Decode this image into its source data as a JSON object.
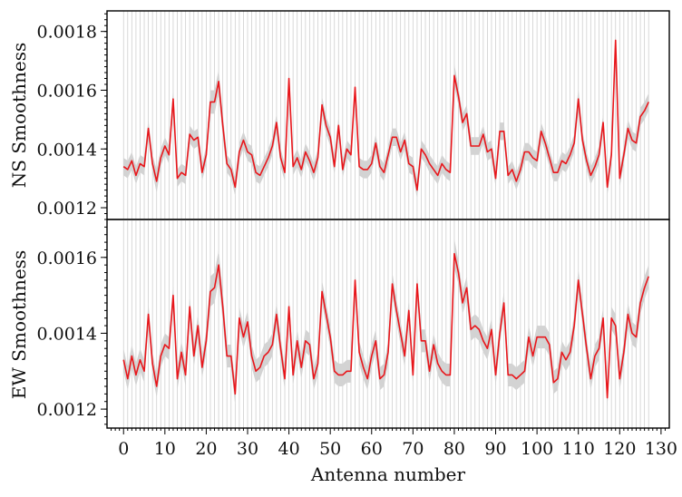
{
  "chart_data": [
    {
      "type": "line",
      "title": "",
      "xlabel": "",
      "ylabel": "NS Smoothness",
      "xlim": [
        -4,
        132
      ],
      "ylim": [
        0.00116,
        0.00187
      ],
      "yticks": [
        0.0012,
        0.0014,
        0.0016,
        0.0018
      ],
      "ytick_labels": [
        "0.0012",
        "0.0014",
        "0.0016",
        "0.0018"
      ],
      "grid": "vertical line at every antenna",
      "line_color": "#e8161b",
      "band_color": "#d3d3d3",
      "x": [
        0,
        1,
        2,
        3,
        4,
        5,
        6,
        7,
        8,
        9,
        10,
        11,
        12,
        13,
        14,
        15,
        16,
        17,
        18,
        19,
        20,
        21,
        22,
        23,
        24,
        25,
        26,
        27,
        28,
        29,
        30,
        31,
        32,
        33,
        34,
        35,
        36,
        37,
        38,
        39,
        40,
        41,
        42,
        43,
        44,
        45,
        46,
        47,
        48,
        49,
        50,
        51,
        52,
        53,
        54,
        55,
        56,
        57,
        58,
        59,
        60,
        61,
        62,
        63,
        64,
        65,
        66,
        67,
        68,
        69,
        70,
        71,
        72,
        73,
        74,
        75,
        76,
        77,
        78,
        79,
        80,
        81,
        82,
        83,
        84,
        85,
        86,
        87,
        88,
        89,
        90,
        91,
        92,
        93,
        94,
        95,
        96,
        97,
        98,
        99,
        100,
        101,
        102,
        103,
        104,
        105,
        106,
        107,
        108,
        109,
        110,
        111,
        112,
        113,
        114,
        115,
        116,
        117,
        118,
        119,
        120,
        121,
        122,
        123,
        124,
        125,
        126,
        127
      ],
      "values": [
        0.00134,
        0.00133,
        0.00136,
        0.00131,
        0.00135,
        0.00134,
        0.00147,
        0.00135,
        0.00129,
        0.00137,
        0.00141,
        0.00138,
        0.00157,
        0.0013,
        0.00132,
        0.00131,
        0.00145,
        0.00143,
        0.00144,
        0.00132,
        0.00138,
        0.00156,
        0.00156,
        0.00163,
        0.00148,
        0.00135,
        0.00133,
        0.00127,
        0.00139,
        0.00143,
        0.00139,
        0.00138,
        0.00132,
        0.00131,
        0.00134,
        0.00137,
        0.00141,
        0.00149,
        0.00137,
        0.00132,
        0.00164,
        0.00134,
        0.00137,
        0.00133,
        0.00139,
        0.00136,
        0.00132,
        0.00137,
        0.00155,
        0.00148,
        0.00144,
        0.00134,
        0.00148,
        0.00133,
        0.0014,
        0.00138,
        0.00161,
        0.00134,
        0.00133,
        0.00133,
        0.00135,
        0.00142,
        0.00134,
        0.00132,
        0.00138,
        0.00144,
        0.00144,
        0.00139,
        0.00143,
        0.00135,
        0.00134,
        0.00126,
        0.0014,
        0.00138,
        0.00135,
        0.00133,
        0.00131,
        0.00135,
        0.00133,
        0.00132,
        0.00165,
        0.00158,
        0.00149,
        0.00152,
        0.00141,
        0.00141,
        0.00141,
        0.00145,
        0.00139,
        0.0014,
        0.0013,
        0.00146,
        0.00146,
        0.00131,
        0.00133,
        0.00129,
        0.00133,
        0.00139,
        0.00139,
        0.00137,
        0.00136,
        0.00146,
        0.00142,
        0.00137,
        0.00132,
        0.00132,
        0.00136,
        0.00135,
        0.00138,
        0.00142,
        0.00157,
        0.00143,
        0.00136,
        0.00131,
        0.00134,
        0.00138,
        0.00149,
        0.00127,
        0.00138,
        0.00177,
        0.0013,
        0.00138,
        0.00147,
        0.00143,
        0.00142,
        0.00151,
        0.00153,
        0.00156
      ],
      "band_halfwidth": [
        3e-05,
        3e-05,
        3e-05,
        3e-05,
        3e-05,
        3e-05,
        3e-05,
        3e-05,
        4e-05,
        3e-05,
        3e-05,
        3e-05,
        4e-05,
        3e-05,
        3e-05,
        3e-05,
        3e-05,
        3e-05,
        3e-05,
        3e-05,
        3e-05,
        4e-05,
        4e-05,
        4e-05,
        4e-05,
        3e-05,
        3e-05,
        3e-05,
        3e-05,
        3e-05,
        3e-05,
        3e-05,
        3e-05,
        3e-05,
        3e-05,
        3e-05,
        3e-05,
        3e-05,
        3e-05,
        3e-05,
        4e-05,
        3e-05,
        3e-05,
        3e-05,
        3e-05,
        3e-05,
        3e-05,
        3e-05,
        3e-05,
        3e-05,
        3e-05,
        3e-05,
        3e-05,
        3e-05,
        3e-05,
        3e-05,
        3e-05,
        3e-05,
        3e-05,
        3e-05,
        3e-05,
        3e-05,
        3e-05,
        3e-05,
        3e-05,
        3e-05,
        3e-05,
        3e-05,
        3e-05,
        3e-05,
        3e-05,
        3e-05,
        3e-05,
        3e-05,
        3e-05,
        3e-05,
        3e-05,
        3e-05,
        3e-05,
        3e-05,
        4e-05,
        3e-05,
        3e-05,
        3e-05,
        3e-05,
        3e-05,
        3e-05,
        3e-05,
        3e-05,
        3e-05,
        3e-05,
        3e-05,
        3e-05,
        3e-05,
        3e-05,
        3e-05,
        3e-05,
        3e-05,
        3e-05,
        3e-05,
        3e-05,
        3e-05,
        3e-05,
        3e-05,
        3e-05,
        3e-05,
        3e-05,
        3e-05,
        3e-05,
        3e-05,
        4e-05,
        3e-05,
        3e-05,
        3e-05,
        3e-05,
        3e-05,
        3e-05,
        3e-05,
        3e-05,
        4e-05,
        3e-05,
        3e-05,
        3e-05,
        3e-05,
        3e-05,
        3e-05,
        3e-05,
        3e-05
      ]
    },
    {
      "type": "line",
      "title": "",
      "xlabel": "Antenna number",
      "ylabel": "EW Smoothness",
      "xlim": [
        -4,
        132
      ],
      "ylim": [
        0.00115,
        0.0017
      ],
      "yticks": [
        0.0012,
        0.0014,
        0.0016
      ],
      "ytick_labels": [
        "0.0012",
        "0.0014",
        "0.0016"
      ],
      "xticks": [
        0,
        10,
        20,
        30,
        40,
        50,
        60,
        70,
        80,
        90,
        100,
        110,
        120,
        130
      ],
      "xtick_labels": [
        "0",
        "10",
        "20",
        "30",
        "40",
        "50",
        "60",
        "70",
        "80",
        "90",
        "100",
        "110",
        "120",
        "130"
      ],
      "grid": "vertical line at every antenna",
      "line_color": "#e8161b",
      "band_color": "#d3d3d3",
      "x": [
        0,
        1,
        2,
        3,
        4,
        5,
        6,
        7,
        8,
        9,
        10,
        11,
        12,
        13,
        14,
        15,
        16,
        17,
        18,
        19,
        20,
        21,
        22,
        23,
        24,
        25,
        26,
        27,
        28,
        29,
        30,
        31,
        32,
        33,
        34,
        35,
        36,
        37,
        38,
        39,
        40,
        41,
        42,
        43,
        44,
        45,
        46,
        47,
        48,
        49,
        50,
        51,
        52,
        53,
        54,
        55,
        56,
        57,
        58,
        59,
        60,
        61,
        62,
        63,
        64,
        65,
        66,
        67,
        68,
        69,
        70,
        71,
        72,
        73,
        74,
        75,
        76,
        77,
        78,
        79,
        80,
        81,
        82,
        83,
        84,
        85,
        86,
        87,
        88,
        89,
        90,
        91,
        92,
        93,
        94,
        95,
        96,
        97,
        98,
        99,
        100,
        101,
        102,
        103,
        104,
        105,
        106,
        107,
        108,
        109,
        110,
        111,
        112,
        113,
        114,
        115,
        116,
        117,
        118,
        119,
        120,
        121,
        122,
        123,
        124,
        125,
        126,
        127
      ],
      "values": [
        0.00133,
        0.00128,
        0.00134,
        0.00129,
        0.00133,
        0.0013,
        0.00145,
        0.00132,
        0.00126,
        0.00134,
        0.00137,
        0.00136,
        0.0015,
        0.00128,
        0.00135,
        0.00129,
        0.00147,
        0.00134,
        0.00142,
        0.00131,
        0.00138,
        0.00151,
        0.00152,
        0.00158,
        0.00147,
        0.00134,
        0.00134,
        0.00124,
        0.00144,
        0.00139,
        0.00143,
        0.00134,
        0.0013,
        0.00131,
        0.00134,
        0.00135,
        0.00137,
        0.00145,
        0.00136,
        0.00128,
        0.00147,
        0.00129,
        0.00138,
        0.00131,
        0.00138,
        0.00137,
        0.00128,
        0.00132,
        0.00151,
        0.00145,
        0.00139,
        0.0013,
        0.00129,
        0.00129,
        0.0013,
        0.0013,
        0.00154,
        0.00135,
        0.00131,
        0.00128,
        0.00134,
        0.00138,
        0.00128,
        0.00129,
        0.00135,
        0.00153,
        0.00146,
        0.0014,
        0.00134,
        0.00146,
        0.00129,
        0.00153,
        0.00138,
        0.00138,
        0.0013,
        0.00137,
        0.00132,
        0.0013,
        0.00129,
        0.00129,
        0.00161,
        0.00156,
        0.00148,
        0.00152,
        0.00141,
        0.00142,
        0.00141,
        0.00138,
        0.00136,
        0.00141,
        0.00129,
        0.0014,
        0.00148,
        0.00129,
        0.00129,
        0.00128,
        0.00129,
        0.0013,
        0.00139,
        0.00134,
        0.00139,
        0.00139,
        0.00139,
        0.00137,
        0.00127,
        0.00128,
        0.00135,
        0.00133,
        0.00135,
        0.00142,
        0.00154,
        0.00145,
        0.00136,
        0.00128,
        0.00134,
        0.00136,
        0.00144,
        0.00123,
        0.00144,
        0.00142,
        0.00128,
        0.00135,
        0.00145,
        0.0014,
        0.00139,
        0.00148,
        0.00152,
        0.00155
      ],
      "band_halfwidth": [
        3e-05,
        3e-05,
        3e-05,
        3e-05,
        3e-05,
        3e-05,
        3e-05,
        3e-05,
        3e-05,
        3e-05,
        3e-05,
        3e-05,
        3e-05,
        3e-05,
        3e-05,
        3e-05,
        3e-05,
        3e-05,
        3e-05,
        3e-05,
        3e-05,
        4e-05,
        4e-05,
        4e-05,
        4e-05,
        3e-05,
        3e-05,
        3e-05,
        3e-05,
        3e-05,
        3e-05,
        3e-05,
        3e-05,
        3e-05,
        3e-05,
        3e-05,
        3e-05,
        3e-05,
        3e-05,
        3e-05,
        3e-05,
        3e-05,
        3e-05,
        3e-05,
        3e-05,
        3e-05,
        3e-05,
        3e-05,
        3e-05,
        3e-05,
        3e-05,
        3e-05,
        3e-05,
        3e-05,
        3e-05,
        3e-05,
        3e-05,
        3e-05,
        3e-05,
        3e-05,
        3e-05,
        3e-05,
        3e-05,
        3e-05,
        3e-05,
        3e-05,
        3e-05,
        3e-05,
        3e-05,
        3e-05,
        3e-05,
        3e-05,
        3e-05,
        3e-05,
        3e-05,
        3e-05,
        3e-05,
        3e-05,
        3e-05,
        3e-05,
        4e-05,
        3e-05,
        3e-05,
        3e-05,
        3e-05,
        3e-05,
        3e-05,
        3e-05,
        3e-05,
        3e-05,
        3e-05,
        3e-05,
        3e-05,
        3e-05,
        3e-05,
        3e-05,
        3e-05,
        3e-05,
        3e-05,
        3e-05,
        3e-05,
        3e-05,
        3e-05,
        3e-05,
        3e-05,
        3e-05,
        3e-05,
        3e-05,
        3e-05,
        3e-05,
        3e-05,
        3e-05,
        3e-05,
        3e-05,
        3e-05,
        3e-05,
        3e-05,
        3e-05,
        3e-05,
        3e-05,
        3e-05,
        3e-05,
        3e-05,
        3e-05,
        3e-05,
        3e-05,
        3e-05,
        3e-05
      ]
    }
  ]
}
